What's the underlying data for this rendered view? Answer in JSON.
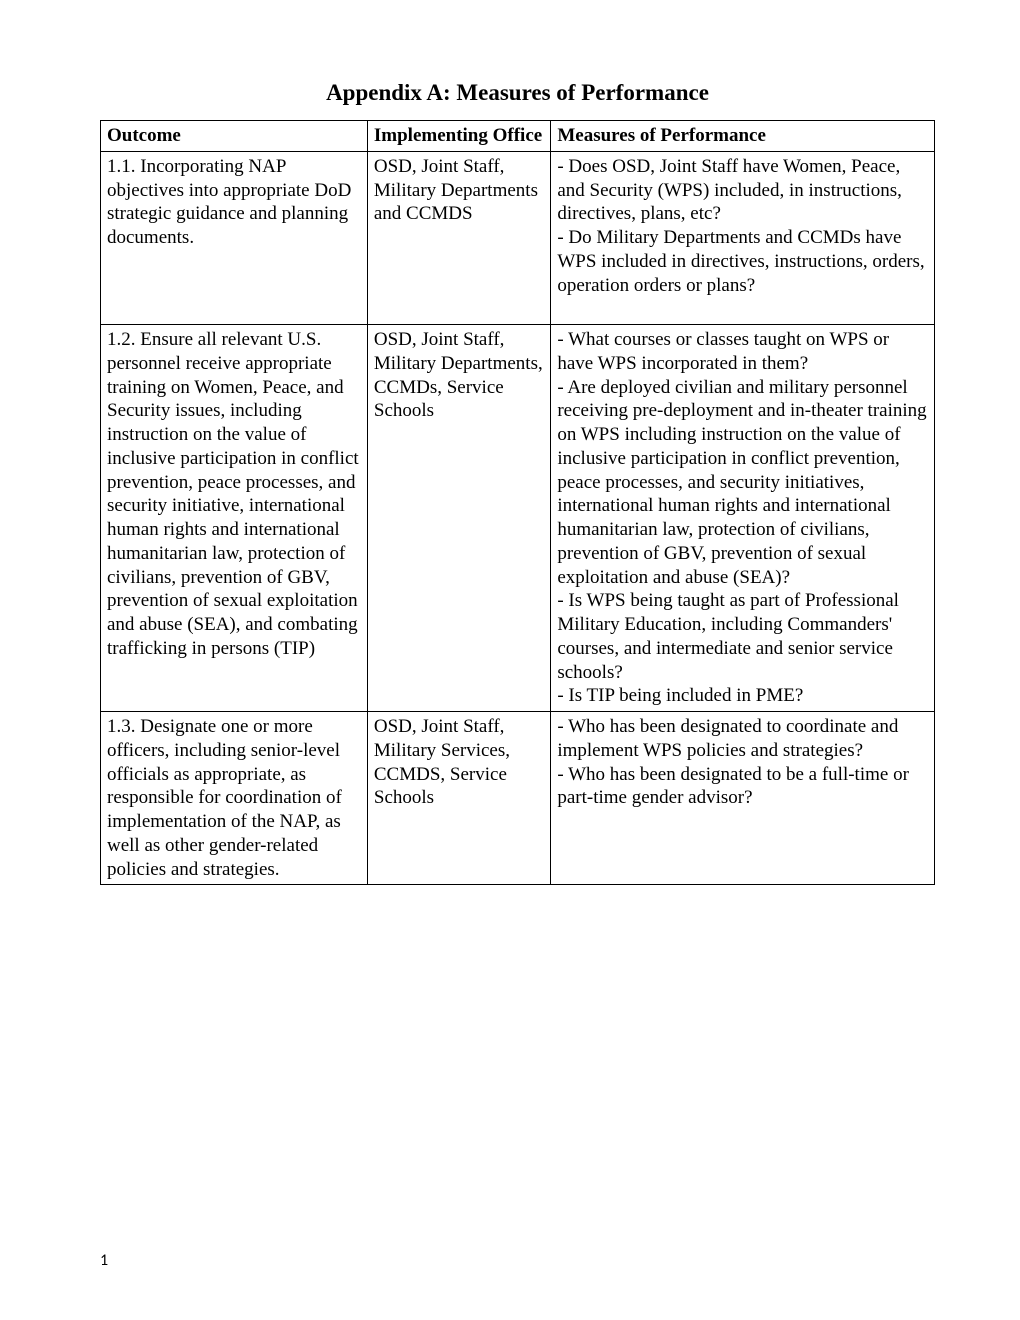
{
  "title": "Appendix A: Measures of Performance",
  "columns": {
    "c1": "Outcome",
    "c2": "Implementing Office",
    "c3": "Measures of Performance"
  },
  "rows": [
    {
      "outcome": "1.1. Incorporating NAP objectives into appropriate DoD strategic guidance and planning documents.",
      "office": "OSD, Joint Staff, Military Departments and CCMDS",
      "measures": "- Does OSD, Joint Staff have Women, Peace, and Security (WPS) included, in instructions, directives, plans, etc?\n- Do Military Departments and CCMDs have WPS included in directives, instructions, orders, operation orders or plans?\n\n"
    },
    {
      "outcome": "1.2. Ensure all relevant U.S. personnel receive appropriate training on Women, Peace, and Security issues, including instruction on the value of inclusive participation in conflict prevention, peace processes, and security initiative, international human rights and international humanitarian law, protection of civilians, prevention of GBV, prevention of sexual exploitation and abuse (SEA), and combating trafficking in persons (TIP)",
      "office": "OSD, Joint Staff, Military Departments, CCMDs, Service Schools",
      "measures": "- What courses or classes taught on WPS or have WPS incorporated in them?\n- Are deployed civilian and military personnel receiving pre-deployment and in-theater training on WPS including instruction on the value of inclusive participation in conflict prevention, peace processes, and security initiatives, international human rights and international humanitarian law, protection of civilians, prevention of GBV, prevention of sexual exploitation and abuse (SEA)?\n- Is WPS being taught as part of Professional Military Education, including Commanders' courses, and intermediate and senior service schools?\n- Is TIP being included in PME?"
    },
    {
      "outcome": "1.3. Designate one or more officers, including senior-level officials as appropriate, as responsible for coordination of implementation of the NAP, as well as other gender-related policies and strategies.",
      "office": "OSD, Joint Staff, Military Services, CCMDS, Service Schools",
      "measures": "-  Who has been designated to coordinate and implement WPS policies and strategies?\n- Who has been designated to be a full-time or part-time gender advisor?"
    }
  ],
  "pageNumber": "1"
}
